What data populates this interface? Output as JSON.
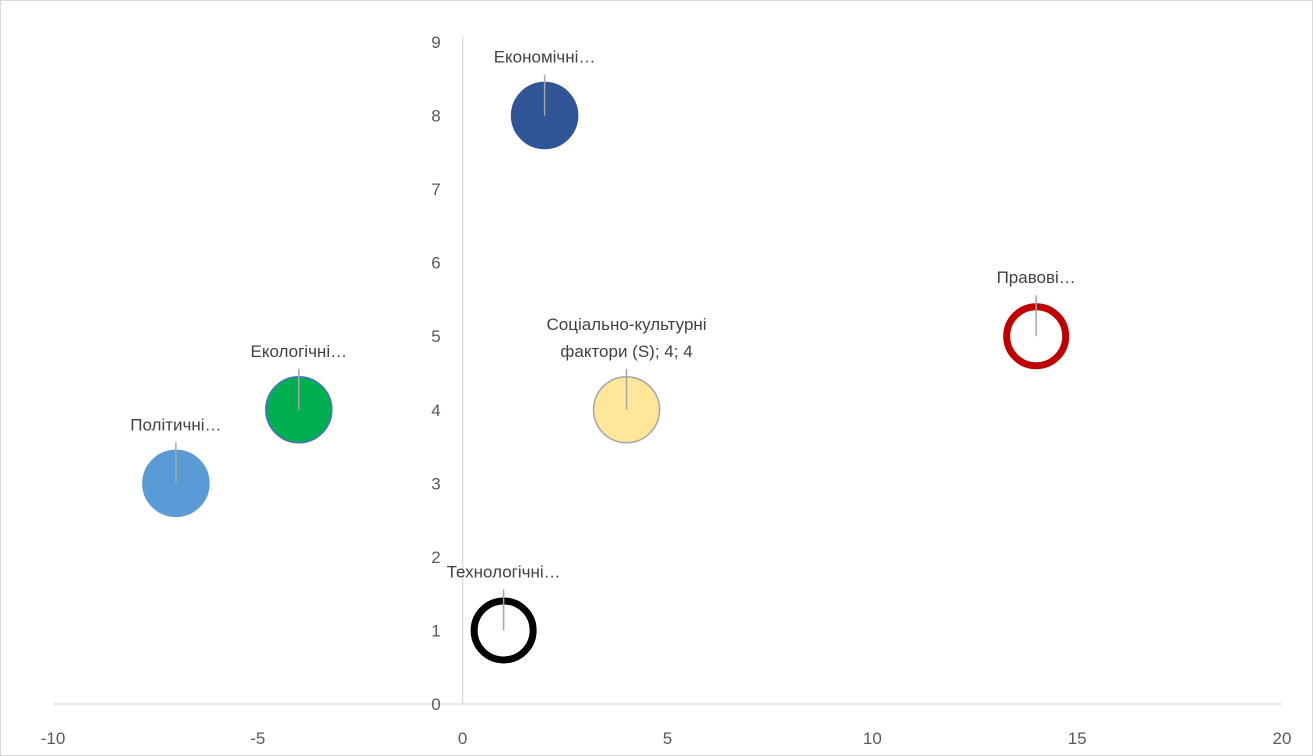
{
  "chart_data": {
    "type": "bubble",
    "xlim": [
      -10,
      20
    ],
    "ylim": [
      0,
      9
    ],
    "x_ticks": [
      -10,
      -5,
      0,
      5,
      10,
      15,
      20
    ],
    "y_ticks": [
      0,
      1,
      2,
      3,
      4,
      5,
      6,
      7,
      8,
      9
    ],
    "grid": false,
    "points": [
      {
        "label": "Економічні…",
        "label_lines": [
          "Економічні…"
        ],
        "x": 2,
        "y": 8,
        "size": 1,
        "fill": "#2f5597",
        "stroke": "#2f5597",
        "style": "filled"
      },
      {
        "label": "Правові…",
        "label_lines": [
          "Правові…"
        ],
        "x": 14,
        "y": 5,
        "size": 1,
        "fill": "none",
        "stroke": "#c00000",
        "style": "ring"
      },
      {
        "label": "Соціально-культурні фактори (S); 4; 4",
        "label_lines": [
          "Соціально-культурні",
          "фактори (S); 4; 4"
        ],
        "x": 4,
        "y": 4,
        "size": 1,
        "fill": "#ffe699",
        "stroke": "#a5a5a5",
        "style": "filled"
      },
      {
        "label": "Екологічні…",
        "label_lines": [
          "Екологічні…"
        ],
        "x": -4,
        "y": 4,
        "size": 1,
        "fill": "#00b050",
        "stroke": "#4472c4",
        "style": "filled"
      },
      {
        "label": "Політичні…",
        "label_lines": [
          "Політичні…"
        ],
        "x": -7,
        "y": 3,
        "size": 1,
        "fill": "#5b9bd5",
        "stroke": "#5b9bd5",
        "style": "filled"
      },
      {
        "label": "Технологічні…",
        "label_lines": [
          "Технологічні…"
        ],
        "x": 1,
        "y": 1,
        "size": 1,
        "fill": "none",
        "stroke": "#000000",
        "style": "ring"
      }
    ],
    "colors": {
      "axis": "#d9d9d9",
      "tick_text": "#595959",
      "label_text": "#404040",
      "leader": "#a6a6a6"
    }
  }
}
